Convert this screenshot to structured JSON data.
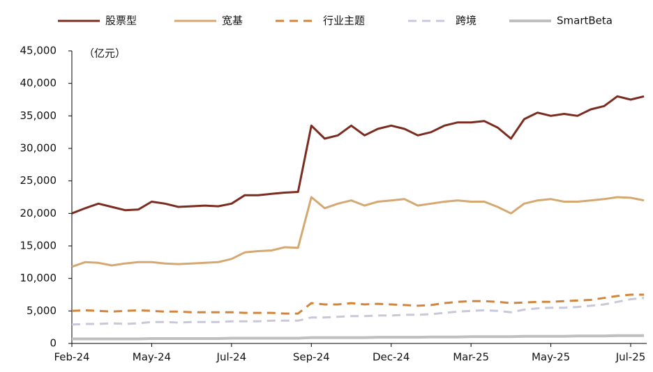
{
  "chart_data": {
    "type": "line",
    "annotation": "（亿元）",
    "categories": [
      "Feb-24",
      null,
      null,
      null,
      null,
      null,
      "May-24",
      null,
      null,
      null,
      null,
      null,
      "Jul-24",
      null,
      null,
      null,
      null,
      null,
      "Sep-24",
      null,
      null,
      null,
      null,
      null,
      "Dec-24",
      null,
      null,
      null,
      null,
      null,
      "Mar-25",
      null,
      null,
      null,
      null,
      null,
      "May-25",
      null,
      null,
      null,
      null,
      null,
      "Jul-25",
      null
    ],
    "series": [
      {
        "name": "股票型",
        "color": "#7b2c20",
        "dash": "solid",
        "width": 3,
        "values": [
          20000,
          20800,
          21500,
          21000,
          20500,
          20600,
          21800,
          21500,
          21000,
          21100,
          21200,
          21100,
          21500,
          22800,
          22800,
          23000,
          23200,
          23300,
          33500,
          31500,
          32000,
          33500,
          32000,
          33000,
          33500,
          33000,
          32000,
          32500,
          33500,
          34000,
          34000,
          34200,
          33200,
          31500,
          34500,
          35500,
          35000,
          35300,
          35000,
          36000,
          36500,
          38000,
          37500,
          38000
        ]
      },
      {
        "name": "宽基",
        "color": "#d4a870",
        "dash": "solid",
        "width": 3,
        "values": [
          11800,
          12500,
          12400,
          12000,
          12300,
          12500,
          12500,
          12300,
          12200,
          12300,
          12400,
          12500,
          13000,
          14000,
          14200,
          14300,
          14800,
          14700,
          22500,
          20800,
          21500,
          22000,
          21200,
          21800,
          22000,
          22200,
          21200,
          21500,
          21800,
          22000,
          21800,
          21800,
          21000,
          20000,
          21500,
          22000,
          22200,
          21800,
          21800,
          22000,
          22200,
          22500,
          22400,
          22000
        ]
      },
      {
        "name": "行业主题",
        "color": "#d2853a",
        "dash": "dashed",
        "width": 3,
        "values": [
          5000,
          5100,
          5000,
          4900,
          5000,
          5100,
          5000,
          4900,
          4900,
          4800,
          4800,
          4800,
          4800,
          4700,
          4700,
          4700,
          4600,
          4600,
          6200,
          6000,
          6000,
          6200,
          6000,
          6100,
          6000,
          5900,
          5800,
          5900,
          6200,
          6400,
          6500,
          6500,
          6400,
          6200,
          6300,
          6400,
          6400,
          6500,
          6600,
          6700,
          7000,
          7300,
          7500,
          7500
        ]
      },
      {
        "name": "跨境",
        "color": "#c8c8d8",
        "dash": "dashed",
        "width": 3,
        "values": [
          2900,
          3000,
          3000,
          3100,
          3000,
          3100,
          3300,
          3300,
          3200,
          3300,
          3300,
          3300,
          3400,
          3400,
          3400,
          3500,
          3500,
          3500,
          4000,
          4000,
          4100,
          4200,
          4200,
          4300,
          4300,
          4400,
          4400,
          4500,
          4700,
          4900,
          5000,
          5100,
          5000,
          4800,
          5200,
          5400,
          5500,
          5500,
          5600,
          5800,
          6000,
          6400,
          6800,
          7000
        ]
      },
      {
        "name": "SmartBeta",
        "color": "#bfbfbf",
        "dash": "solid",
        "width": 4,
        "values": [
          700,
          700,
          700,
          700,
          700,
          700,
          750,
          750,
          750,
          750,
          750,
          750,
          800,
          800,
          800,
          800,
          800,
          800,
          900,
          900,
          900,
          900,
          900,
          950,
          950,
          950,
          950,
          1000,
          1000,
          1000,
          1050,
          1050,
          1050,
          1050,
          1100,
          1100,
          1100,
          1100,
          1150,
          1150,
          1150,
          1200,
          1200,
          1200
        ]
      }
    ],
    "ylim": [
      0,
      45000
    ],
    "yticks": [
      0,
      {
        "value": 5000,
        "label": "5,000"
      },
      {
        "value": 10000,
        "label": "10,000"
      },
      {
        "value": 15000,
        "label": "15,000"
      },
      {
        "value": 20000,
        "label": "20,000"
      },
      {
        "value": 25000,
        "label": "25,000"
      },
      {
        "value": 30000,
        "label": "30,000"
      },
      {
        "value": 35000,
        "label": "35,000"
      },
      {
        "value": 40000,
        "label": "40,000"
      },
      {
        "value": 45000,
        "label": "45,000"
      }
    ],
    "legend": "top",
    "grid": false
  }
}
